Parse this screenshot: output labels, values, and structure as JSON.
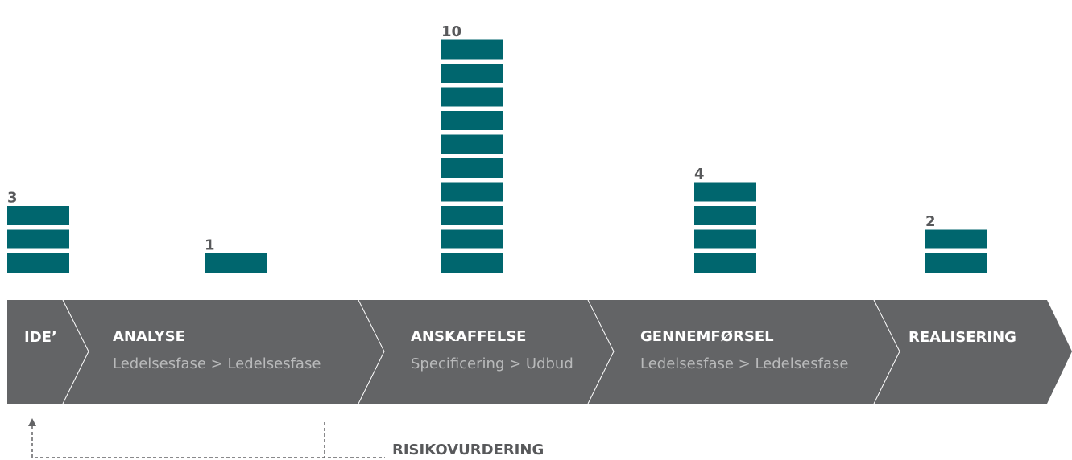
{
  "chart_data": {
    "type": "blocks",
    "categories": [
      "IDE’",
      "ANALYSE",
      "ANSKAFFELSE",
      "GENNEMFØRSEL",
      "REALISERING"
    ],
    "subtitles": [
      null,
      "Ledelsesfase > Ledelsesfase",
      "Specificering > Udbud",
      "Ledelsesfase > Ledelsesfase",
      null
    ],
    "values": [
      3,
      1,
      10,
      4,
      2
    ],
    "color": "#00666e",
    "note": "RISIKOVURDERING"
  }
}
